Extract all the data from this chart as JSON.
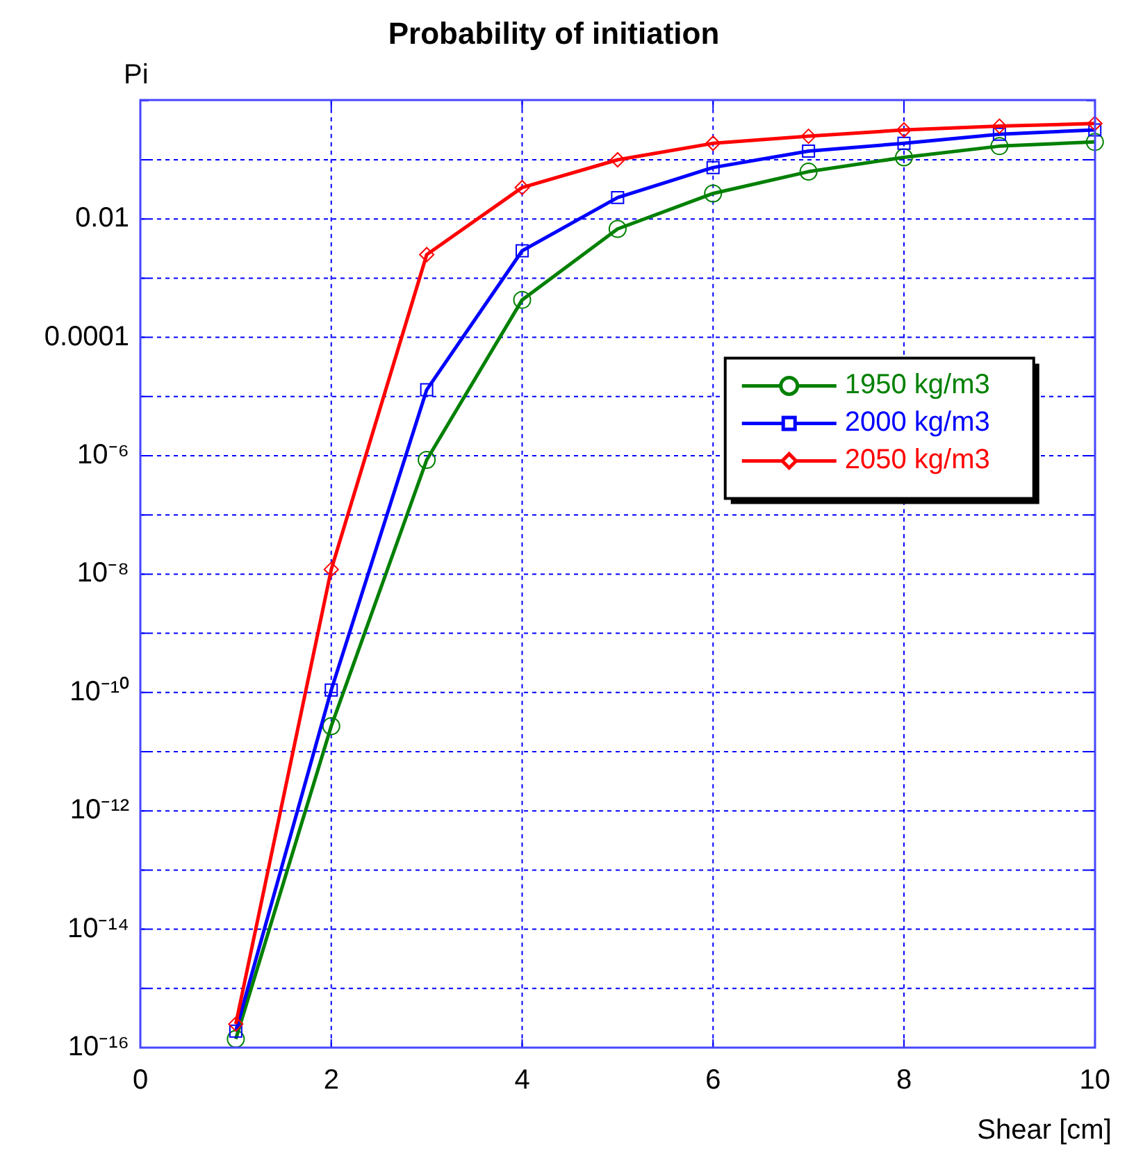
{
  "chart_data": {
    "type": "line",
    "title": "Probability of initiation",
    "xlabel": "Shear [cm]",
    "ylabel": "Pi",
    "x": [
      1,
      2,
      3,
      4,
      5,
      6,
      7,
      8,
      9,
      10
    ],
    "xlim": [
      0,
      10
    ],
    "xticks": [
      0,
      2,
      4,
      6,
      8,
      10
    ],
    "ylim": [
      1e-16,
      1
    ],
    "log": true,
    "yticks": [
      {
        "value": 1e-16,
        "label": "10⁻¹⁶"
      },
      {
        "value": 1e-15,
        "label": null
      },
      {
        "value": 1e-14,
        "label": "10⁻¹⁴"
      },
      {
        "value": 1e-13,
        "label": null
      },
      {
        "value": 1e-12,
        "label": "10⁻¹²"
      },
      {
        "value": 1e-11,
        "label": null
      },
      {
        "value": 1e-10,
        "label": "10⁻¹⁰"
      },
      {
        "value": 1e-09,
        "label": null
      },
      {
        "value": 1e-08,
        "label": "10⁻⁸"
      },
      {
        "value": 1e-07,
        "label": null
      },
      {
        "value": 1e-06,
        "label": "10⁻⁶"
      },
      {
        "value": 1e-05,
        "label": null
      },
      0.0001,
      {
        "value": 0.001,
        "label": null
      },
      0.01,
      {
        "value": 0.1,
        "label": null
      },
      {
        "value": 1,
        "label": null
      }
    ],
    "grid": true,
    "legend": "right",
    "line_style": "solid",
    "series": [
      {
        "name": "1950 kg/m3",
        "color": "#008000",
        "marker": "circle",
        "values": [
          1.4e-16,
          2.7e-11,
          8.5e-07,
          0.00043,
          0.0068,
          0.027,
          0.063,
          0.11,
          0.17,
          0.2
        ]
      },
      {
        "name": "2000 kg/m3",
        "color": "#0000ff",
        "marker": "square",
        "values": [
          1.9e-16,
          1.1e-10,
          1.3e-05,
          0.0029,
          0.023,
          0.074,
          0.14,
          0.19,
          0.27,
          0.32
        ]
      },
      {
        "name": "2050 kg/m3",
        "color": "#ff0000",
        "marker": "diamond",
        "values": [
          2.5e-16,
          1.2e-08,
          0.0025,
          0.034,
          0.1,
          0.19,
          0.25,
          0.32,
          0.37,
          0.41
        ]
      }
    ]
  }
}
